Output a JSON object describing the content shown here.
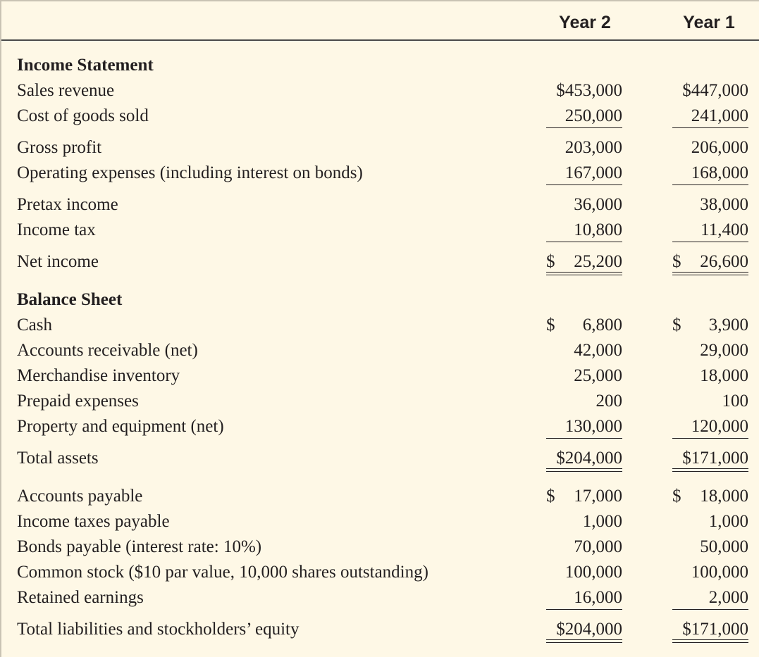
{
  "header": {
    "year2": "Year 2",
    "year1": "Year 1"
  },
  "income_statement": {
    "title": "Income Statement",
    "rows": [
      {
        "label": "Sales revenue",
        "y2_dollar": "$",
        "y2": "453,000",
        "y1_dollar": "$",
        "y1": "447,000"
      },
      {
        "label": "Cost of goods sold",
        "y2": "250,000",
        "y1": "241,000"
      },
      {
        "label": "Gross profit",
        "y2": "203,000",
        "y1": "206,000"
      },
      {
        "label": "Operating expenses (including interest on bonds)",
        "y2": "167,000",
        "y1": "168,000"
      },
      {
        "label": "Pretax income",
        "y2": "36,000",
        "y1": "38,000"
      },
      {
        "label": "Income tax",
        "y2": "10,800",
        "y1": "11,400"
      },
      {
        "label": "Net income",
        "y2_dollar": "$",
        "y2": "25,200",
        "y1_dollar": "$",
        "y1": "26,600"
      }
    ]
  },
  "balance_sheet": {
    "title": "Balance Sheet",
    "rows": [
      {
        "label": "Cash",
        "y2_dollar": "$",
        "y2": "6,800",
        "y1_dollar": "$",
        "y1": "3,900"
      },
      {
        "label": "Accounts receivable (net)",
        "y2": "42,000",
        "y1": "29,000"
      },
      {
        "label": "Merchandise inventory",
        "y2": "25,000",
        "y1": "18,000"
      },
      {
        "label": "Prepaid expenses",
        "y2": "200",
        "y1": "100"
      },
      {
        "label": "Property and equipment (net)",
        "y2": "130,000",
        "y1": "120,000"
      },
      {
        "label": "Total assets",
        "y2_dollar": "$",
        "y2": "204,000",
        "y1_dollar": "$",
        "y1": "171,000"
      },
      {
        "label": "Accounts payable",
        "y2_dollar": "$",
        "y2": "17,000",
        "y1_dollar": "$",
        "y1": "18,000"
      },
      {
        "label": "Income taxes payable",
        "y2": "1,000",
        "y1": "1,000"
      },
      {
        "label": "Bonds payable (interest rate: 10%)",
        "y2": "70,000",
        "y1": "50,000"
      },
      {
        "label": "Common stock ($10 par value, 10,000 shares outstanding)",
        "y2": "100,000",
        "y1": "100,000"
      },
      {
        "label": "Retained earnings",
        "y2": "16,000",
        "y1": "2,000"
      },
      {
        "label": "Total liabilities and stockholders’ equity",
        "y2_dollar": "$",
        "y2": "204,000",
        "y1_dollar": "$",
        "y1": "171,000"
      }
    ]
  }
}
